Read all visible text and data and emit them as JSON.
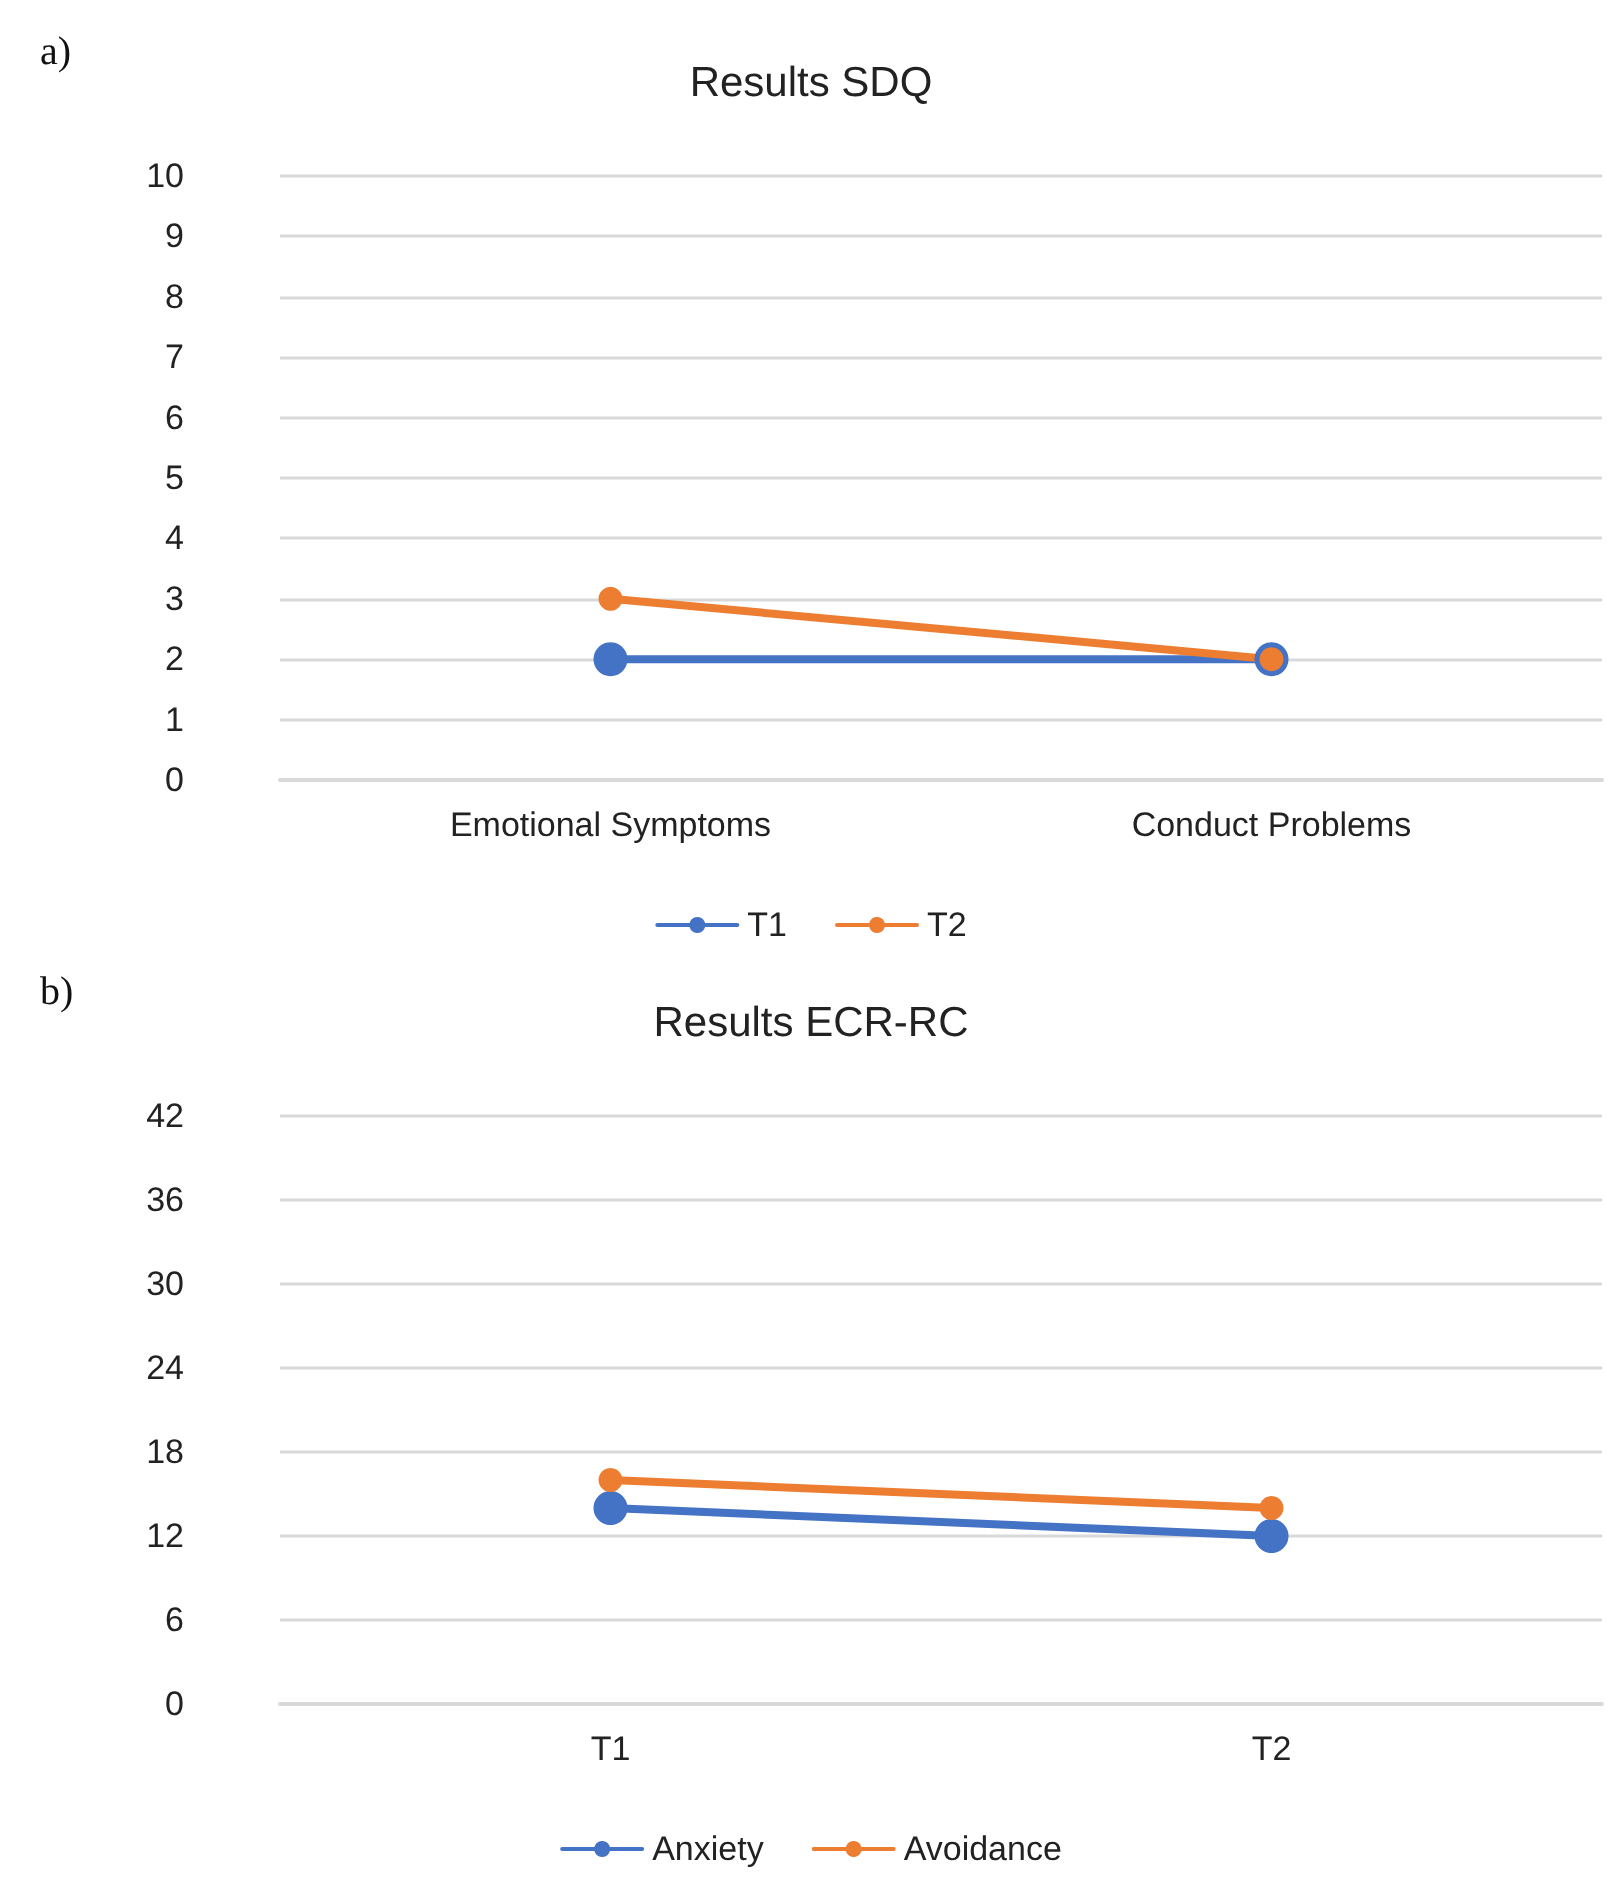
{
  "chart_data": [
    {
      "type": "line",
      "title": "Results SDQ",
      "annotations": [
        "a)"
      ],
      "categories": [
        "Emotional Symptoms",
        "Conduct Problems"
      ],
      "series": [
        {
          "name": "T1",
          "color": "#4472c4",
          "values": [
            2,
            2
          ]
        },
        {
          "name": "T2",
          "color": "#ed7d31",
          "values": [
            3,
            2
          ]
        }
      ],
      "ylim": [
        0,
        10
      ],
      "yticks": [
        0,
        1,
        2,
        3,
        4,
        5,
        6,
        7,
        8,
        9,
        10
      ],
      "grid": "y",
      "legend": "bottom",
      "marker": "circle",
      "line_style": "solid"
    },
    {
      "type": "line",
      "title": "Results ECR-RC",
      "annotations": [
        "b)"
      ],
      "categories": [
        "T1",
        "T2"
      ],
      "series": [
        {
          "name": "Anxiety",
          "color": "#4472c4",
          "values": [
            14,
            12
          ]
        },
        {
          "name": "Avoidance",
          "color": "#ed7d31",
          "values": [
            16,
            14
          ]
        }
      ],
      "ylim": [
        0,
        42
      ],
      "yticks": [
        0,
        6,
        12,
        18,
        24,
        30,
        36,
        42
      ],
      "grid": "y",
      "legend": "bottom",
      "marker": "circle",
      "line_style": "solid"
    }
  ]
}
